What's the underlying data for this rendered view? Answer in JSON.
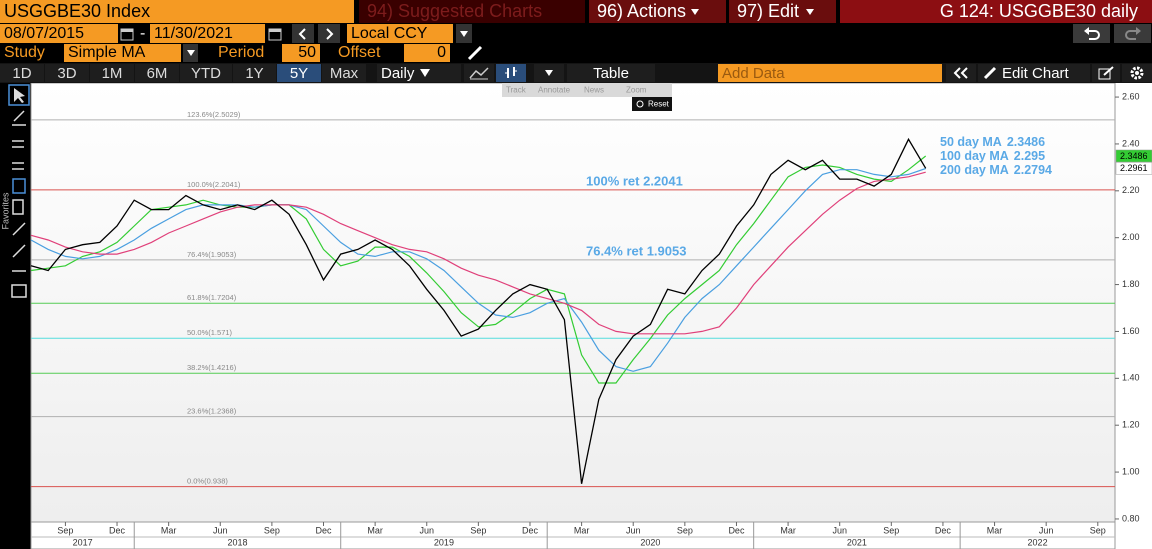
{
  "header": {
    "security": "USGGBE30 Index",
    "menus": [
      "94) Suggested Charts",
      "96) Actions",
      "97) Edit"
    ],
    "page_id": "G 124: USGGBE30 daily"
  },
  "controls": {
    "start_date": "08/07/2015",
    "date_sep": "-",
    "end_date": "11/30/2021",
    "currency": "Local CCY",
    "study_label": "Study",
    "study": "Simple MA",
    "period_label": "Period",
    "period": 50,
    "offset_label": "Offset",
    "offset": 0
  },
  "tabs": {
    "ranges": [
      "1D",
      "3D",
      "1M",
      "6M",
      "YTD",
      "1Y",
      "5Y",
      "Max"
    ],
    "active": "5Y",
    "frequency": "Daily",
    "table": "Table",
    "add_data": "Add Data",
    "edit_chart": "Edit Chart"
  },
  "chart_tools": [
    "Track",
    "Annotate",
    "News",
    "Zoom"
  ],
  "reset": "Reset",
  "favorites": "Favorites",
  "chart_data": {
    "type": "line",
    "x": [
      "2017-07",
      "2017-08",
      "2017-09",
      "2017-10",
      "2017-11",
      "2017-12",
      "2018-01",
      "2018-02",
      "2018-03",
      "2018-04",
      "2018-05",
      "2018-06",
      "2018-07",
      "2018-08",
      "2018-09",
      "2018-10",
      "2018-11",
      "2018-12",
      "2019-01",
      "2019-02",
      "2019-03",
      "2019-04",
      "2019-05",
      "2019-06",
      "2019-07",
      "2019-08",
      "2019-09",
      "2019-10",
      "2019-11",
      "2019-12",
      "2020-01",
      "2020-02",
      "2020-03",
      "2020-04",
      "2020-05",
      "2020-06",
      "2020-07",
      "2020-08",
      "2020-09",
      "2020-10",
      "2020-11",
      "2020-12",
      "2021-01",
      "2021-02",
      "2021-03",
      "2021-04",
      "2021-05",
      "2021-06",
      "2021-07",
      "2021-08",
      "2021-09",
      "2021-10",
      "2021-11"
    ],
    "series": [
      {
        "color": "#000000",
        "badge_color": "#ffffff",
        "values": [
          1.88,
          1.86,
          1.95,
          1.97,
          1.98,
          2.05,
          2.16,
          2.12,
          2.12,
          2.18,
          2.14,
          2.12,
          2.14,
          2.12,
          2.16,
          2.1,
          1.97,
          1.82,
          1.93,
          1.95,
          1.99,
          1.95,
          1.88,
          1.78,
          1.69,
          1.58,
          1.61,
          1.69,
          1.76,
          1.8,
          1.78,
          1.65,
          0.95,
          1.31,
          1.48,
          1.58,
          1.63,
          1.78,
          1.76,
          1.86,
          1.93,
          2.05,
          2.14,
          2.27,
          2.33,
          2.29,
          2.33,
          2.25,
          2.25,
          2.22,
          2.27,
          2.42,
          2.2961
        ]
      },
      {
        "name": "50 day MA",
        "color": "#33cc33",
        "badge_color": "#33cc33",
        "values": [
          1.86,
          1.87,
          1.88,
          1.92,
          1.94,
          1.98,
          2.05,
          2.12,
          2.13,
          2.14,
          2.16,
          2.14,
          2.13,
          2.13,
          2.14,
          2.14,
          2.08,
          1.95,
          1.88,
          1.9,
          1.96,
          1.96,
          1.92,
          1.85,
          1.77,
          1.68,
          1.62,
          1.63,
          1.68,
          1.74,
          1.78,
          1.76,
          1.5,
          1.38,
          1.38,
          1.48,
          1.57,
          1.67,
          1.74,
          1.8,
          1.86,
          1.97,
          2.06,
          2.16,
          2.26,
          2.3,
          2.31,
          2.3,
          2.27,
          2.25,
          2.24,
          2.29,
          2.3486
        ]
      },
      {
        "name": "100 day MA",
        "color": "#4a9fe0",
        "values": [
          1.99,
          1.95,
          1.92,
          1.91,
          1.92,
          1.95,
          1.99,
          2.04,
          2.08,
          2.12,
          2.14,
          2.14,
          2.14,
          2.13,
          2.14,
          2.14,
          2.12,
          2.05,
          1.98,
          1.93,
          1.92,
          1.94,
          1.94,
          1.91,
          1.86,
          1.79,
          1.72,
          1.67,
          1.66,
          1.68,
          1.72,
          1.74,
          1.64,
          1.52,
          1.45,
          1.43,
          1.45,
          1.55,
          1.66,
          1.74,
          1.8,
          1.88,
          1.96,
          2.04,
          2.12,
          2.2,
          2.27,
          2.29,
          2.29,
          2.27,
          2.26,
          2.27,
          2.295
        ]
      },
      {
        "name": "200 day MA",
        "color": "#e0407a",
        "values": [
          2.01,
          1.99,
          1.96,
          1.94,
          1.93,
          1.93,
          1.95,
          1.98,
          2.02,
          2.05,
          2.08,
          2.11,
          2.13,
          2.14,
          2.14,
          2.14,
          2.13,
          2.1,
          2.06,
          2.03,
          2.0,
          1.97,
          1.95,
          1.94,
          1.91,
          1.87,
          1.84,
          1.82,
          1.79,
          1.76,
          1.74,
          1.72,
          1.69,
          1.63,
          1.6,
          1.59,
          1.59,
          1.59,
          1.59,
          1.6,
          1.62,
          1.7,
          1.8,
          1.88,
          1.96,
          2.03,
          2.1,
          2.16,
          2.21,
          2.24,
          2.25,
          2.26,
          2.2794
        ]
      }
    ],
    "legend": "top-right",
    "legend_color": "#5aa9e6",
    "fib_levels": [
      {
        "label": "123.6%(2.5029)",
        "value": 2.5029,
        "color": "#b0b0b0"
      },
      {
        "label": "100.0%(2.2041)",
        "value": 2.2041,
        "color": "#d9534f",
        "annotation": "100% ret 2.2041"
      },
      {
        "label": "76.4%(1.9053)",
        "value": 1.9053,
        "color": "#b0b0b0",
        "annotation": "76.4% ret 1.9053"
      },
      {
        "label": "61.8%(1.7204)",
        "value": 1.7204,
        "color": "#55cc55"
      },
      {
        "label": "50.0%(1.571)",
        "value": 1.571,
        "color": "#55dddd"
      },
      {
        "label": "38.2%(1.4216)",
        "value": 1.4216,
        "color": "#55cc55"
      },
      {
        "label": "23.6%(1.2368)",
        "value": 1.2368,
        "color": "#b0b0b0"
      },
      {
        "label": "0.0%(0.938)",
        "value": 0.938,
        "color": "#d9534f"
      }
    ],
    "xlim": [
      "2017-07",
      "2022-10"
    ],
    "xticks": [
      {
        "value": "2017-09",
        "label": "Sep"
      },
      {
        "value": "2017-12",
        "label": "Dec"
      },
      {
        "value": "2018-03",
        "label": "Mar"
      },
      {
        "value": "2018-06",
        "label": "Jun"
      },
      {
        "value": "2018-09",
        "label": "Sep"
      },
      {
        "value": "2018-12",
        "label": "Dec"
      },
      {
        "value": "2019-03",
        "label": "Mar"
      },
      {
        "value": "2019-06",
        "label": "Jun"
      },
      {
        "value": "2019-09",
        "label": "Sep"
      },
      {
        "value": "2019-12",
        "label": "Dec"
      },
      {
        "value": "2020-03",
        "label": "Mar"
      },
      {
        "value": "2020-06",
        "label": "Jun"
      },
      {
        "value": "2020-09",
        "label": "Sep"
      },
      {
        "value": "2020-12",
        "label": "Dec"
      },
      {
        "value": "2021-03",
        "label": "Mar"
      },
      {
        "value": "2021-06",
        "label": "Jun"
      },
      {
        "value": "2021-09",
        "label": "Sep"
      },
      {
        "value": "2021-12",
        "label": "Dec"
      },
      {
        "value": "2022-03",
        "label": "Mar"
      },
      {
        "value": "2022-06",
        "label": "Jun"
      },
      {
        "value": "2022-09",
        "label": "Sep"
      }
    ],
    "years": [
      "2017",
      "2018",
      "2019",
      "2020",
      "2021",
      "2022"
    ],
    "ylim": [
      0.787,
      2.66
    ],
    "yticks": [
      {
        "value": 0.8,
        "label": "0.80"
      },
      {
        "value": 1.0,
        "label": "1.00"
      },
      {
        "value": 1.2,
        "label": "1.20"
      },
      {
        "value": 1.4,
        "label": "1.40"
      },
      {
        "value": 1.6,
        "label": "1.60"
      },
      {
        "value": 1.8,
        "label": "1.80"
      },
      {
        "value": 2.0,
        "label": "2.00"
      },
      {
        "value": 2.2,
        "label": "2.20"
      },
      {
        "value": 2.4,
        "label": "2.40"
      },
      {
        "value": 2.6,
        "label": "2.60"
      }
    ],
    "grid": false
  }
}
